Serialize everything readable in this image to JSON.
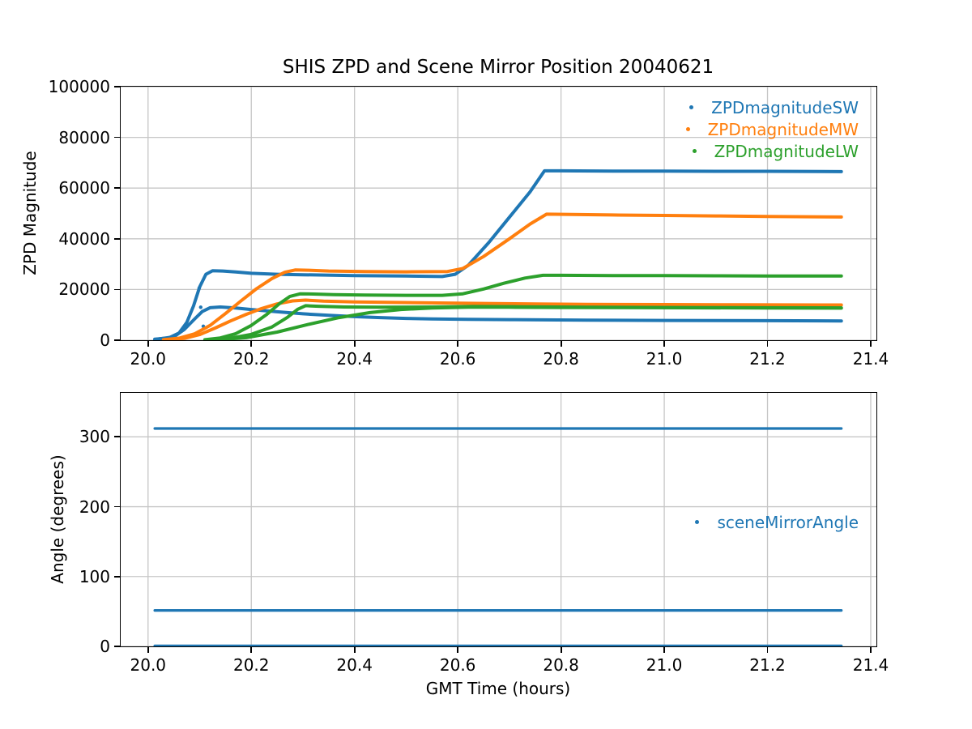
{
  "figure_title": "SHIS ZPD and Scene Mirror Position 20040621",
  "colors": {
    "blue": "#1f77b4",
    "orange": "#ff7f0e",
    "green": "#2ca02c",
    "grid": "#c6c6c6",
    "spine": "#000000"
  },
  "chart_data": [
    {
      "type": "scatter",
      "title": "SHIS ZPD and Scene Mirror Position 20040621",
      "xlabel": "",
      "ylabel": "ZPD Magnitude",
      "xlim": [
        19.947,
        21.411
      ],
      "ylim": [
        0,
        100000
      ],
      "xticks": [
        20.0,
        20.2,
        20.4,
        20.6,
        20.8,
        21.0,
        21.2,
        21.4
      ],
      "xtick_labels": [
        "20.0",
        "20.2",
        "20.4",
        "20.6",
        "20.8",
        "21.0",
        "21.2",
        "21.4"
      ],
      "yticks": [
        0,
        20000,
        40000,
        60000,
        80000,
        100000
      ],
      "ytick_labels": [
        "0",
        "20000",
        "40000",
        "60000",
        "80000",
        "100000"
      ],
      "grid": true,
      "legend_position": "upper right",
      "series": [
        {
          "name": "ZPDmagnitudeSW",
          "color": "#1f77b4",
          "branches": [
            [
              [
                20.013,
                400
              ],
              [
                20.04,
                900
              ],
              [
                20.06,
                2800
              ],
              [
                20.075,
                7000
              ],
              [
                20.088,
                13500
              ],
              [
                20.1,
                21000
              ],
              [
                20.112,
                26000
              ],
              [
                20.125,
                27400
              ],
              [
                20.145,
                27300
              ],
              [
                20.17,
                26900
              ],
              [
                20.2,
                26400
              ],
              [
                20.25,
                26000
              ],
              [
                20.3,
                25800
              ],
              [
                20.4,
                25500
              ],
              [
                20.5,
                25300
              ],
              [
                20.57,
                25100
              ],
              [
                20.595,
                26000
              ],
              [
                20.62,
                29500
              ],
              [
                20.66,
                38500
              ],
              [
                20.7,
                48500
              ],
              [
                20.74,
                58500
              ],
              [
                20.768,
                66800
              ],
              [
                20.8,
                66800
              ],
              [
                20.9,
                66700
              ],
              [
                21.0,
                66700
              ],
              [
                21.1,
                66600
              ],
              [
                21.2,
                66600
              ],
              [
                21.343,
                66500
              ]
            ],
            [
              [
                20.013,
                300
              ],
              [
                20.05,
                1300
              ],
              [
                20.07,
                4200
              ],
              [
                20.09,
                8300
              ],
              [
                20.105,
                11300
              ],
              [
                20.12,
                12800
              ],
              [
                20.14,
                13100
              ],
              [
                20.17,
                12700
              ],
              [
                20.2,
                12100
              ],
              [
                20.25,
                11200
              ],
              [
                20.3,
                10400
              ],
              [
                20.35,
                9800
              ],
              [
                20.4,
                9300
              ],
              [
                20.45,
                8900
              ],
              [
                20.5,
                8600
              ],
              [
                20.55,
                8400
              ],
              [
                20.62,
                8200
              ],
              [
                20.7,
                8100
              ],
              [
                20.85,
                7900
              ],
              [
                21.0,
                7800
              ],
              [
                21.2,
                7700
              ],
              [
                21.343,
                7600
              ]
            ]
          ],
          "extra_points": [
            [
              20.099,
              20500
            ],
            [
              20.102,
              13000
            ],
            [
              20.107,
              5500
            ]
          ]
        },
        {
          "name": "ZPDmagnitudeMW",
          "color": "#ff7f0e",
          "branches": [
            [
              [
                20.03,
                200
              ],
              [
                20.06,
                800
              ],
              [
                20.09,
                2500
              ],
              [
                20.12,
                5800
              ],
              [
                20.15,
                10500
              ],
              [
                20.18,
                15500
              ],
              [
                20.21,
                20300
              ],
              [
                20.24,
                24300
              ],
              [
                20.265,
                26800
              ],
              [
                20.285,
                27700
              ],
              [
                20.31,
                27600
              ],
              [
                20.35,
                27300
              ],
              [
                20.42,
                27050
              ],
              [
                20.5,
                26950
              ],
              [
                20.58,
                27100
              ],
              [
                20.61,
                28300
              ],
              [
                20.65,
                33000
              ],
              [
                20.7,
                40000
              ],
              [
                20.74,
                45800
              ],
              [
                20.772,
                49700
              ],
              [
                20.82,
                49600
              ],
              [
                20.9,
                49400
              ],
              [
                21.0,
                49200
              ],
              [
                21.1,
                49000
              ],
              [
                21.2,
                48800
              ],
              [
                21.343,
                48600
              ]
            ],
            [
              [
                20.03,
                150
              ],
              [
                20.07,
                700
              ],
              [
                20.1,
                2200
              ],
              [
                20.13,
                4800
              ],
              [
                20.16,
                7600
              ],
              [
                20.19,
                10200
              ],
              [
                20.22,
                12500
              ],
              [
                20.25,
                14300
              ],
              [
                20.28,
                15500
              ],
              [
                20.305,
                15800
              ],
              [
                20.34,
                15400
              ],
              [
                20.4,
                15100
              ],
              [
                20.48,
                14900
              ],
              [
                20.56,
                14700
              ],
              [
                20.65,
                14500
              ],
              [
                20.75,
                14300
              ],
              [
                20.85,
                14150
              ],
              [
                21.0,
                14050
              ],
              [
                21.15,
                13950
              ],
              [
                21.343,
                13900
              ]
            ]
          ],
          "extra_points": []
        },
        {
          "name": "ZPDmagnitudeLW",
          "color": "#2ca02c",
          "branches": [
            [
              [
                20.11,
                200
              ],
              [
                20.14,
                900
              ],
              [
                20.17,
                2600
              ],
              [
                20.2,
                5800
              ],
              [
                20.23,
                10200
              ],
              [
                20.255,
                14500
              ],
              [
                20.275,
                17300
              ],
              [
                20.295,
                18300
              ],
              [
                20.32,
                18200
              ],
              [
                20.36,
                17950
              ],
              [
                20.42,
                17800
              ],
              [
                20.5,
                17700
              ],
              [
                20.57,
                17700
              ],
              [
                20.61,
                18300
              ],
              [
                20.65,
                20200
              ],
              [
                20.69,
                22500
              ],
              [
                20.73,
                24500
              ],
              [
                20.765,
                25600
              ],
              [
                20.8,
                25600
              ],
              [
                20.9,
                25500
              ],
              [
                21.0,
                25450
              ],
              [
                21.1,
                25400
              ],
              [
                21.2,
                25350
              ],
              [
                21.343,
                25300
              ]
            ],
            [
              [
                20.12,
                150
              ],
              [
                20.16,
                800
              ],
              [
                20.2,
                2300
              ],
              [
                20.24,
                5200
              ],
              [
                20.27,
                9000
              ],
              [
                20.29,
                12200
              ],
              [
                20.305,
                13600
              ],
              [
                20.33,
                13400
              ],
              [
                20.38,
                13100
              ],
              [
                20.45,
                13000
              ],
              [
                20.55,
                13100
              ],
              [
                20.63,
                13300
              ],
              [
                20.72,
                13200
              ],
              [
                20.85,
                13000
              ],
              [
                21.0,
                12900
              ],
              [
                21.2,
                12800
              ],
              [
                21.343,
                12750
              ]
            ],
            [
              [
                20.13,
                100
              ],
              [
                20.19,
                1000
              ],
              [
                20.25,
                3200
              ],
              [
                20.31,
                6200
              ],
              [
                20.37,
                8900
              ],
              [
                20.43,
                10900
              ],
              [
                20.49,
                12100
              ],
              [
                20.55,
                12700
              ],
              [
                20.62,
                13000
              ],
              [
                20.7,
                13000
              ],
              [
                20.8,
                12900
              ],
              [
                21.0,
                12800
              ],
              [
                21.2,
                12700
              ],
              [
                21.343,
                12650
              ]
            ]
          ],
          "extra_points": []
        }
      ]
    },
    {
      "type": "scatter",
      "title": "",
      "xlabel": "GMT Time (hours)",
      "ylabel": "Angle (degrees)",
      "xlim": [
        19.947,
        21.411
      ],
      "ylim": [
        0,
        363
      ],
      "xticks": [
        20.0,
        20.2,
        20.4,
        20.6,
        20.8,
        21.0,
        21.2,
        21.4
      ],
      "xtick_labels": [
        "20.0",
        "20.2",
        "20.4",
        "20.6",
        "20.8",
        "21.0",
        "21.2",
        "21.4"
      ],
      "yticks": [
        0,
        100,
        200,
        300
      ],
      "ytick_labels": [
        "0",
        "100",
        "200",
        "300"
      ],
      "grid": true,
      "legend_position": "center right",
      "series": [
        {
          "name": "sceneMirrorAngle",
          "color": "#1f77b4",
          "branches": [
            [
              [
                20.013,
                312
              ],
              [
                21.343,
                312
              ]
            ],
            [
              [
                20.013,
                51.5
              ],
              [
                21.343,
                51.5
              ]
            ],
            [
              [
                20.013,
                0.8
              ],
              [
                21.343,
                0.8
              ]
            ]
          ],
          "extra_points": []
        }
      ]
    }
  ]
}
